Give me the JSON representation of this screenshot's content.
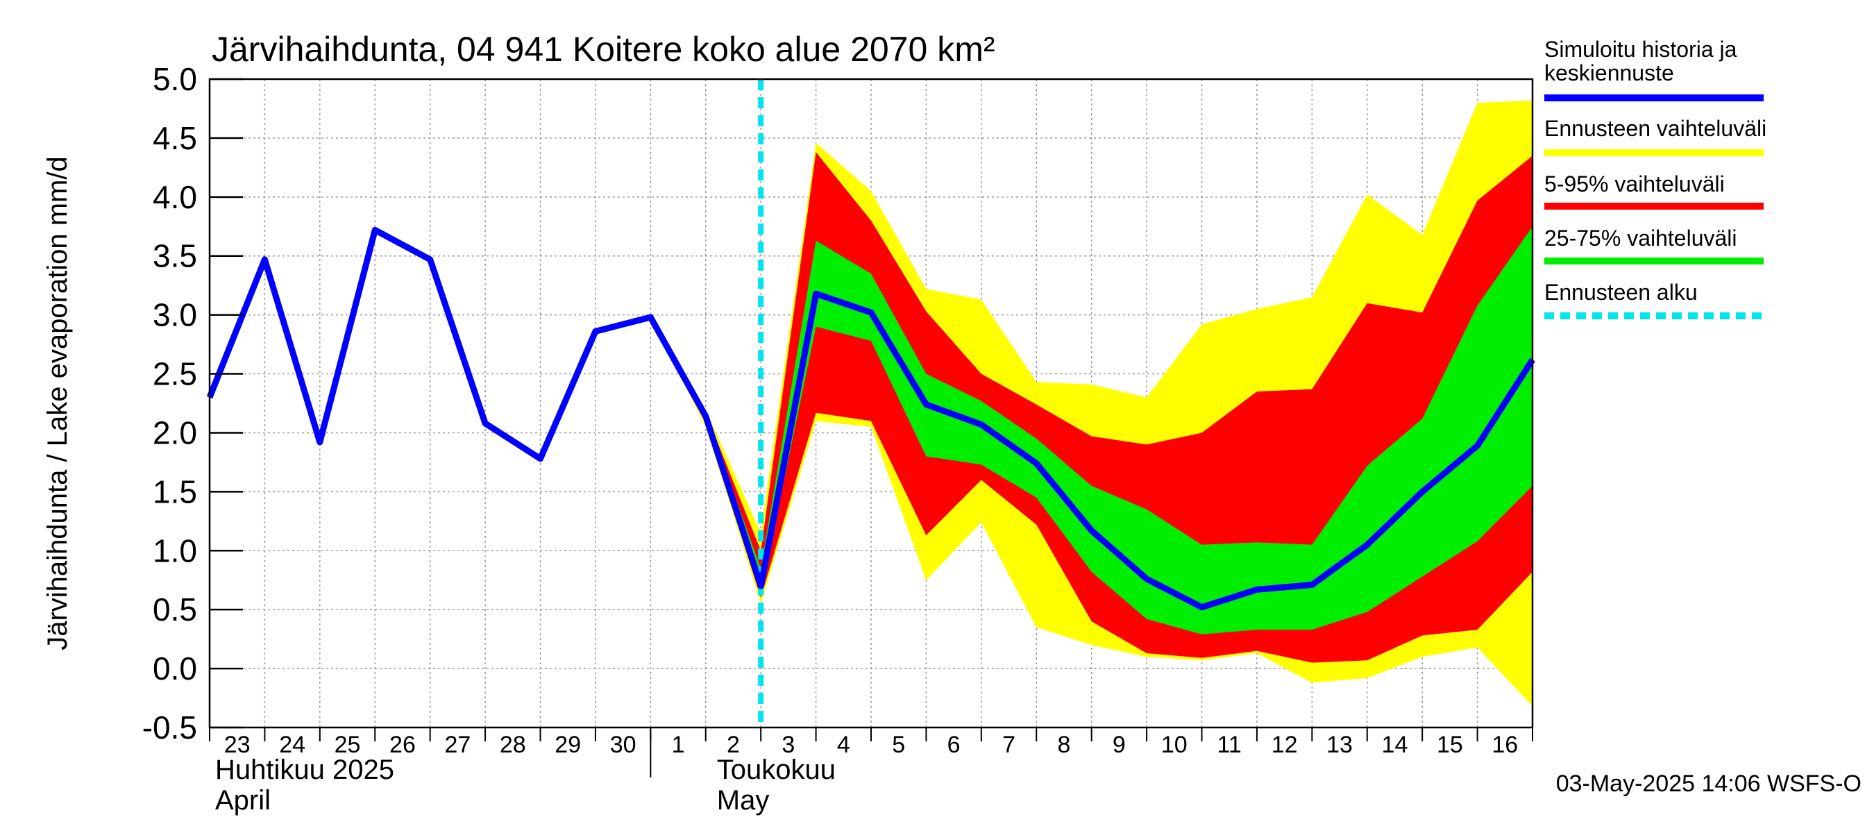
{
  "chart_data": {
    "type": "area",
    "title": "Järvihaihdunta, 04 941 Koitere koko alue 2070 km²",
    "ylabel": "Järvihaihdunta / Lake evaporation   mm/d",
    "ylim": [
      -0.5,
      5.0
    ],
    "yticks": [
      "5.0",
      "4.5",
      "4.0",
      "3.5",
      "3.0",
      "2.5",
      "2.0",
      "1.5",
      "1.0",
      "0.5",
      "0.0",
      "-0.5"
    ],
    "x_day_labels": [
      "23",
      "24",
      "25",
      "26",
      "27",
      "28",
      "29",
      "30",
      "1",
      "2",
      "3",
      "4",
      "5",
      "6",
      "7",
      "8",
      "9",
      "10",
      "11",
      "12",
      "13",
      "14",
      "15",
      "16"
    ],
    "month_labels": [
      {
        "fi": "Huhtikuu  2025",
        "en": "April"
      },
      {
        "fi": "Toukokuu",
        "en": "May"
      }
    ],
    "x": [
      "2025-04-23",
      "2025-04-24",
      "2025-04-25",
      "2025-04-26",
      "2025-04-27",
      "2025-04-28",
      "2025-04-29",
      "2025-04-30",
      "2025-05-01",
      "2025-05-02",
      "2025-05-03",
      "2025-05-04",
      "2025-05-05",
      "2025-05-06",
      "2025-05-07",
      "2025-05-08",
      "2025-05-09",
      "2025-05-10",
      "2025-05-11",
      "2025-05-12",
      "2025-05-13",
      "2025-05-14",
      "2025-05-15",
      "2025-05-16",
      "2025-05-17"
    ],
    "history": [
      2.3,
      3.47,
      1.92,
      3.72,
      3.47,
      2.08,
      1.78,
      2.86,
      2.98,
      2.14,
      0.7,
      3.18,
      3.02,
      2.24,
      2.07,
      1.74,
      1.17,
      0.76,
      0.52,
      0.67,
      0.71,
      1.05,
      1.5,
      1.89,
      2.62
    ],
    "bands": [
      {
        "name": "Ennusteen vaihteluväli",
        "color": "#ffff00",
        "upper": [
          null,
          null,
          null,
          null,
          null,
          null,
          null,
          null,
          2.98,
          2.2,
          1.15,
          4.46,
          4.05,
          3.22,
          3.13,
          2.43,
          2.41,
          2.3,
          2.92,
          3.05,
          3.15,
          4.02,
          3.68,
          4.8,
          4.82
        ],
        "lower": [
          null,
          null,
          null,
          null,
          null,
          null,
          null,
          null,
          2.98,
          2.05,
          0.55,
          2.1,
          2.05,
          0.75,
          1.24,
          0.35,
          0.2,
          0.1,
          0.07,
          0.13,
          -0.12,
          -0.08,
          0.1,
          0.18,
          -0.32
        ]
      },
      {
        "name": "5-95% vaihteluväli",
        "color": "#ff0000",
        "upper": [
          null,
          null,
          null,
          null,
          null,
          null,
          null,
          null,
          2.98,
          2.17,
          1.0,
          4.38,
          3.8,
          3.03,
          2.5,
          2.24,
          1.97,
          1.9,
          2.0,
          2.35,
          2.37,
          3.1,
          3.02,
          3.97,
          4.35
        ],
        "lower": [
          null,
          null,
          null,
          null,
          null,
          null,
          null,
          null,
          2.98,
          2.08,
          0.6,
          2.17,
          2.1,
          1.13,
          1.6,
          1.22,
          0.4,
          0.13,
          0.09,
          0.15,
          0.05,
          0.07,
          0.28,
          0.33,
          0.82
        ]
      },
      {
        "name": "25-75% vaihteluväli",
        "color": "#00ee00",
        "upper": [
          null,
          null,
          null,
          null,
          null,
          null,
          null,
          null,
          2.98,
          2.15,
          0.85,
          3.63,
          3.35,
          2.5,
          2.27,
          1.95,
          1.55,
          1.35,
          1.05,
          1.07,
          1.05,
          1.72,
          2.12,
          3.08,
          3.75
        ],
        "lower": [
          null,
          null,
          null,
          null,
          null,
          null,
          null,
          null,
          2.98,
          2.1,
          0.65,
          2.9,
          2.78,
          1.8,
          1.73,
          1.45,
          0.82,
          0.42,
          0.29,
          0.33,
          0.33,
          0.48,
          0.78,
          1.08,
          1.55
        ]
      }
    ],
    "forecast_start": "2025-05-03",
    "series_colors": {
      "history": "#0000ff",
      "forecast_start": "#00e5ee"
    },
    "legend": {
      "placement": "right",
      "items": [
        {
          "label": "Simuloitu historia ja keskiennuste",
          "color": "#0000ff",
          "style": "solid"
        },
        {
          "label": "Ennusteen vaihteluväli",
          "color": "#ffff00",
          "style": "solid"
        },
        {
          "label": "5-95% vaihteluväli",
          "color": "#ff0000",
          "style": "solid"
        },
        {
          "label": "25-75% vaihteluväli",
          "color": "#00ee00",
          "style": "solid"
        },
        {
          "label": "Ennusteen alku",
          "color": "#00e5ee",
          "style": "dashed"
        }
      ]
    },
    "grid": true,
    "footer": "03-May-2025 14:06 WSFS-O"
  }
}
